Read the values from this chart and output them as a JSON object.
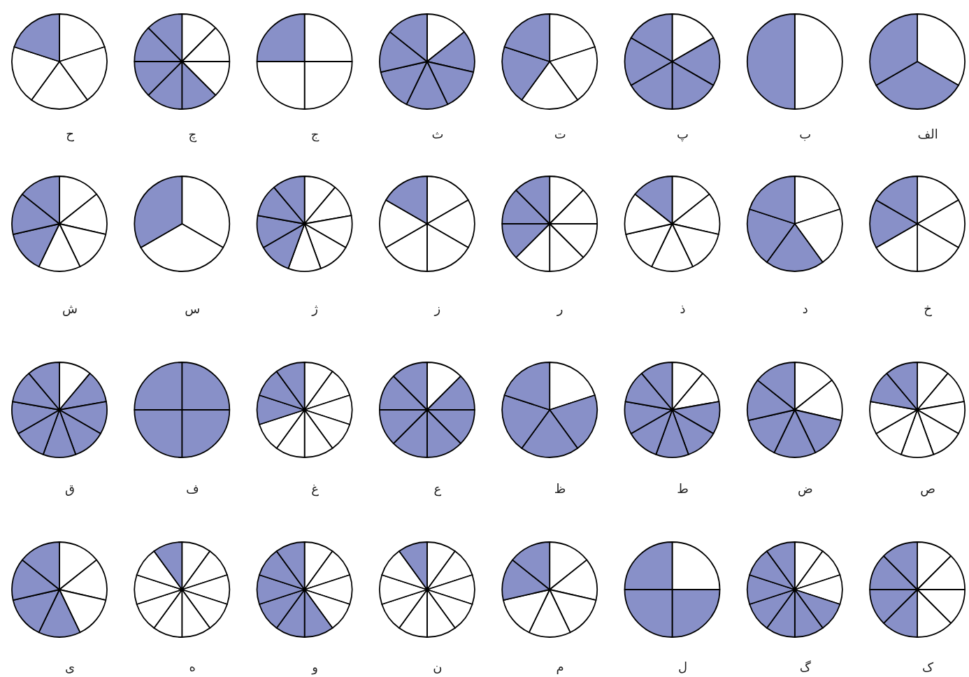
{
  "chart_data": [
    {
      "type": "pie",
      "title": "الف",
      "categories": [
        null,
        null,
        null
      ],
      "values": [
        33.33,
        33.33,
        33.33
      ],
      "colors": [
        "#ffffff",
        "#8890c8",
        "#8890c8"
      ]
    },
    {
      "type": "pie",
      "title": "ب",
      "categories": [
        null,
        null
      ],
      "values": [
        50,
        50
      ],
      "colors": [
        "#ffffff",
        "#8890c8"
      ]
    },
    {
      "type": "pie",
      "title": "پ",
      "categories": [
        null,
        null,
        null,
        null,
        null,
        null
      ],
      "values": [
        16.67,
        16.67,
        16.67,
        16.67,
        16.67,
        16.67
      ],
      "colors": [
        "#ffffff",
        "#8890c8",
        "#8890c8",
        "#8890c8",
        "#8890c8",
        "#8890c8"
      ]
    },
    {
      "type": "pie",
      "title": "ت",
      "categories": [
        null,
        null,
        null,
        null,
        null
      ],
      "values": [
        20,
        20,
        20,
        20,
        20
      ],
      "colors": [
        "#ffffff",
        "#ffffff",
        "#ffffff",
        "#8890c8",
        "#8890c8"
      ]
    },
    {
      "type": "pie",
      "title": "ث",
      "categories": [
        null,
        null,
        null,
        null,
        null,
        null,
        null
      ],
      "values": [
        14.29,
        14.29,
        14.29,
        14.29,
        14.29,
        14.29,
        14.29
      ],
      "colors": [
        "#ffffff",
        "#8890c8",
        "#8890c8",
        "#8890c8",
        "#8890c8",
        "#8890c8",
        "#8890c8"
      ]
    },
    {
      "type": "pie",
      "title": "ج",
      "categories": [
        null,
        null,
        null,
        null
      ],
      "values": [
        25,
        25,
        25,
        25
      ],
      "colors": [
        "#ffffff",
        "#ffffff",
        "#ffffff",
        "#8890c8"
      ]
    },
    {
      "type": "pie",
      "title": "چ",
      "categories": [
        null,
        null,
        null,
        null,
        null,
        null,
        null,
        null
      ],
      "values": [
        12.5,
        12.5,
        12.5,
        12.5,
        12.5,
        12.5,
        12.5,
        12.5
      ],
      "colors": [
        "#ffffff",
        "#ffffff",
        "#ffffff",
        "#8890c8",
        "#8890c8",
        "#8890c8",
        "#8890c8",
        "#8890c8"
      ]
    },
    {
      "type": "pie",
      "title": "ح",
      "categories": [
        null,
        null,
        null,
        null,
        null
      ],
      "values": [
        20,
        20,
        20,
        20,
        20
      ],
      "colors": [
        "#ffffff",
        "#ffffff",
        "#ffffff",
        "#ffffff",
        "#8890c8"
      ]
    },
    {
      "type": "pie",
      "title": "خ",
      "categories": [
        null,
        null,
        null,
        null,
        null,
        null
      ],
      "values": [
        16.67,
        16.67,
        16.67,
        16.67,
        16.67,
        16.67
      ],
      "colors": [
        "#ffffff",
        "#ffffff",
        "#ffffff",
        "#ffffff",
        "#8890c8",
        "#8890c8"
      ]
    },
    {
      "type": "pie",
      "title": "د",
      "categories": [
        null,
        null,
        null,
        null,
        null
      ],
      "values": [
        20,
        20,
        20,
        20,
        20
      ],
      "colors": [
        "#ffffff",
        "#ffffff",
        "#8890c8",
        "#8890c8",
        "#8890c8"
      ]
    },
    {
      "type": "pie",
      "title": "ذ",
      "categories": [
        null,
        null,
        null,
        null,
        null,
        null,
        null
      ],
      "values": [
        14.29,
        14.29,
        14.29,
        14.29,
        14.29,
        14.29,
        14.29
      ],
      "colors": [
        "#ffffff",
        "#ffffff",
        "#ffffff",
        "#ffffff",
        "#ffffff",
        "#ffffff",
        "#8890c8"
      ]
    },
    {
      "type": "pie",
      "title": "ر",
      "categories": [
        null,
        null,
        null,
        null,
        null,
        null,
        null,
        null
      ],
      "values": [
        12.5,
        12.5,
        12.5,
        12.5,
        12.5,
        12.5,
        12.5,
        12.5
      ],
      "colors": [
        "#ffffff",
        "#ffffff",
        "#ffffff",
        "#ffffff",
        "#ffffff",
        "#8890c8",
        "#8890c8",
        "#8890c8"
      ]
    },
    {
      "type": "pie",
      "title": "ز",
      "categories": [
        null,
        null,
        null,
        null,
        null,
        null
      ],
      "values": [
        16.67,
        16.67,
        16.67,
        16.67,
        16.67,
        16.67
      ],
      "colors": [
        "#ffffff",
        "#ffffff",
        "#ffffff",
        "#ffffff",
        "#ffffff",
        "#8890c8"
      ]
    },
    {
      "type": "pie",
      "title": "ژ",
      "categories": [
        null,
        null,
        null,
        null,
        null,
        null,
        null,
        null,
        null
      ],
      "values": [
        11.11,
        11.11,
        11.11,
        11.11,
        11.11,
        11.11,
        11.11,
        11.11,
        11.11
      ],
      "colors": [
        "#ffffff",
        "#ffffff",
        "#ffffff",
        "#ffffff",
        "#ffffff",
        "#8890c8",
        "#8890c8",
        "#8890c8",
        "#8890c8"
      ]
    },
    {
      "type": "pie",
      "title": "س",
      "categories": [
        null,
        null,
        null
      ],
      "values": [
        33.33,
        33.33,
        33.33
      ],
      "colors": [
        "#ffffff",
        "#ffffff",
        "#8890c8"
      ]
    },
    {
      "type": "pie",
      "title": "ش",
      "categories": [
        null,
        null,
        null,
        null,
        null,
        null,
        null
      ],
      "values": [
        14.29,
        14.29,
        14.29,
        14.29,
        14.29,
        14.29,
        14.29
      ],
      "colors": [
        "#ffffff",
        "#ffffff",
        "#ffffff",
        "#ffffff",
        "#8890c8",
        "#8890c8",
        "#8890c8"
      ]
    },
    {
      "type": "pie",
      "title": "ص",
      "categories": [
        null,
        null,
        null,
        null,
        null,
        null,
        null,
        null,
        null
      ],
      "values": [
        11.11,
        11.11,
        11.11,
        11.11,
        11.11,
        11.11,
        11.11,
        11.11,
        11.11
      ],
      "colors": [
        "#ffffff",
        "#ffffff",
        "#ffffff",
        "#ffffff",
        "#ffffff",
        "#ffffff",
        "#ffffff",
        "#8890c8",
        "#8890c8"
      ]
    },
    {
      "type": "pie",
      "title": "ض",
      "categories": [
        null,
        null,
        null,
        null,
        null,
        null,
        null
      ],
      "values": [
        14.29,
        14.29,
        14.29,
        14.29,
        14.29,
        14.29,
        14.29
      ],
      "colors": [
        "#ffffff",
        "#ffffff",
        "#8890c8",
        "#8890c8",
        "#8890c8",
        "#8890c8",
        "#8890c8"
      ]
    },
    {
      "type": "pie",
      "title": "ط",
      "categories": [
        null,
        null,
        null,
        null,
        null,
        null,
        null,
        null,
        null
      ],
      "values": [
        11.11,
        11.11,
        11.11,
        11.11,
        11.11,
        11.11,
        11.11,
        11.11,
        11.11
      ],
      "colors": [
        "#ffffff",
        "#ffffff",
        "#8890c8",
        "#8890c8",
        "#8890c8",
        "#8890c8",
        "#8890c8",
        "#8890c8",
        "#8890c8"
      ]
    },
    {
      "type": "pie",
      "title": "ظ",
      "categories": [
        null,
        null,
        null,
        null,
        null
      ],
      "values": [
        20,
        20,
        20,
        20,
        20
      ],
      "colors": [
        "#ffffff",
        "#8890c8",
        "#8890c8",
        "#8890c8",
        "#8890c8"
      ]
    },
    {
      "type": "pie",
      "title": "ع",
      "categories": [
        null,
        null,
        null,
        null,
        null,
        null,
        null,
        null
      ],
      "values": [
        12.5,
        12.5,
        12.5,
        12.5,
        12.5,
        12.5,
        12.5,
        12.5
      ],
      "colors": [
        "#ffffff",
        "#8890c8",
        "#8890c8",
        "#8890c8",
        "#8890c8",
        "#8890c8",
        "#8890c8",
        "#8890c8"
      ]
    },
    {
      "type": "pie",
      "title": "غ",
      "categories": [
        null,
        null,
        null,
        null,
        null,
        null,
        null,
        null,
        null,
        null
      ],
      "values": [
        10,
        10,
        10,
        10,
        10,
        10,
        10,
        10,
        10,
        10
      ],
      "colors": [
        "#ffffff",
        "#ffffff",
        "#ffffff",
        "#ffffff",
        "#ffffff",
        "#ffffff",
        "#ffffff",
        "#8890c8",
        "#8890c8",
        "#8890c8"
      ]
    },
    {
      "type": "pie",
      "title": "ف",
      "categories": [
        null,
        null,
        null,
        null
      ],
      "values": [
        25,
        25,
        25,
        25
      ],
      "colors": [
        "#8890c8",
        "#8890c8",
        "#8890c8",
        "#8890c8"
      ]
    },
    {
      "type": "pie",
      "title": "ق",
      "categories": [
        null,
        null,
        null,
        null,
        null,
        null,
        null,
        null,
        null
      ],
      "values": [
        11.11,
        11.11,
        11.11,
        11.11,
        11.11,
        11.11,
        11.11,
        11.11,
        11.11
      ],
      "colors": [
        "#ffffff",
        "#8890c8",
        "#8890c8",
        "#8890c8",
        "#8890c8",
        "#8890c8",
        "#8890c8",
        "#8890c8",
        "#8890c8"
      ]
    },
    {
      "type": "pie",
      "title": "ک",
      "categories": [
        null,
        null,
        null,
        null,
        null,
        null,
        null,
        null
      ],
      "values": [
        12.5,
        12.5,
        12.5,
        12.5,
        12.5,
        12.5,
        12.5,
        12.5
      ],
      "colors": [
        "#ffffff",
        "#ffffff",
        "#ffffff",
        "#ffffff",
        "#8890c8",
        "#8890c8",
        "#8890c8",
        "#8890c8"
      ]
    },
    {
      "type": "pie",
      "title": "گ",
      "categories": [
        null,
        null,
        null,
        null,
        null,
        null,
        null,
        null,
        null,
        null
      ],
      "values": [
        10,
        10,
        10,
        10,
        10,
        10,
        10,
        10,
        10,
        10
      ],
      "colors": [
        "#ffffff",
        "#ffffff",
        "#ffffff",
        "#8890c8",
        "#8890c8",
        "#8890c8",
        "#8890c8",
        "#8890c8",
        "#8890c8",
        "#8890c8"
      ]
    },
    {
      "type": "pie",
      "title": "ل",
      "categories": [
        null,
        null,
        null,
        null
      ],
      "values": [
        25,
        25,
        25,
        25
      ],
      "colors": [
        "#ffffff",
        "#8890c8",
        "#8890c8",
        "#8890c8"
      ]
    },
    {
      "type": "pie",
      "title": "م",
      "categories": [
        null,
        null,
        null,
        null,
        null,
        null,
        null
      ],
      "values": [
        14.29,
        14.29,
        14.29,
        14.29,
        14.29,
        14.29,
        14.29
      ],
      "colors": [
        "#ffffff",
        "#ffffff",
        "#ffffff",
        "#ffffff",
        "#ffffff",
        "#8890c8",
        "#8890c8"
      ]
    },
    {
      "type": "pie",
      "title": "ن",
      "categories": [
        null,
        null,
        null,
        null,
        null,
        null,
        null,
        null,
        null,
        null
      ],
      "values": [
        10,
        10,
        10,
        10,
        10,
        10,
        10,
        10,
        10,
        10
      ],
      "colors": [
        "#ffffff",
        "#ffffff",
        "#ffffff",
        "#ffffff",
        "#ffffff",
        "#ffffff",
        "#ffffff",
        "#ffffff",
        "#ffffff",
        "#8890c8"
      ]
    },
    {
      "type": "pie",
      "title": "و",
      "categories": [
        null,
        null,
        null,
        null,
        null,
        null,
        null,
        null,
        null,
        null
      ],
      "values": [
        10,
        10,
        10,
        10,
        10,
        10,
        10,
        10,
        10,
        10
      ],
      "colors": [
        "#ffffff",
        "#ffffff",
        "#ffffff",
        "#ffffff",
        "#8890c8",
        "#8890c8",
        "#8890c8",
        "#8890c8",
        "#8890c8",
        "#8890c8"
      ]
    },
    {
      "type": "pie",
      "title": "ه",
      "categories": [
        null,
        null,
        null,
        null,
        null,
        null,
        null,
        null,
        null,
        null
      ],
      "values": [
        10,
        10,
        10,
        10,
        10,
        10,
        10,
        10,
        10,
        10
      ],
      "colors": [
        "#ffffff",
        "#ffffff",
        "#ffffff",
        "#ffffff",
        "#ffffff",
        "#ffffff",
        "#ffffff",
        "#ffffff",
        "#ffffff",
        "#8890c8"
      ]
    },
    {
      "type": "pie",
      "title": "ی",
      "categories": [
        null,
        null,
        null,
        null,
        null,
        null,
        null
      ],
      "values": [
        14.29,
        14.29,
        14.29,
        14.29,
        14.29,
        14.29,
        14.29
      ],
      "colors": [
        "#ffffff",
        "#ffffff",
        "#ffffff",
        "#8890c8",
        "#8890c8",
        "#8890c8",
        "#8890c8"
      ]
    }
  ]
}
